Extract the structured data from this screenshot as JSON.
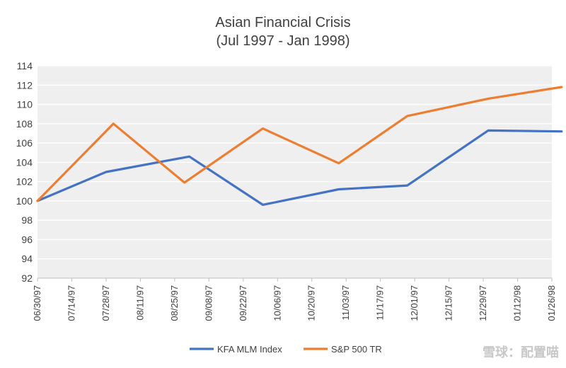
{
  "chart_data": {
    "type": "line",
    "title": "Asian Financial Crisis",
    "subtitle": "(Jul 1997 - Jan 1998)",
    "xlabel": "",
    "ylabel": "",
    "ylim": [
      92,
      114
    ],
    "yticks": [
      92,
      94,
      96,
      98,
      100,
      102,
      104,
      106,
      108,
      110,
      112,
      114
    ],
    "grid": true,
    "legend_position": "bottom",
    "x_dates": [
      "06/30/97",
      "07/14/97",
      "07/28/97",
      "08/11/97",
      "08/25/97",
      "09/08/97",
      "09/22/97",
      "10/06/97",
      "10/20/97",
      "11/03/97",
      "11/17/97",
      "12/01/97",
      "12/15/97",
      "12/29/97",
      "01/12/98",
      "01/26/98"
    ],
    "series": [
      {
        "name": "KFA MLM Index",
        "color": "#4472C4",
        "points": [
          {
            "x": "06/30/97",
            "y": 100.0
          },
          {
            "x": "07/28/97",
            "y": 103.0
          },
          {
            "x": "08/31/97",
            "y": 104.6
          },
          {
            "x": "09/30/97",
            "y": 99.6
          },
          {
            "x": "10/31/97",
            "y": 101.2
          },
          {
            "x": "11/28/97",
            "y": 101.6
          },
          {
            "x": "12/31/97",
            "y": 107.3
          },
          {
            "x": "01/30/98",
            "y": 107.2
          }
        ]
      },
      {
        "name": "S&P 500 TR",
        "color": "#ED7D31",
        "points": [
          {
            "x": "06/30/97",
            "y": 100.0
          },
          {
            "x": "07/31/97",
            "y": 108.0
          },
          {
            "x": "08/29/97",
            "y": 101.9
          },
          {
            "x": "09/30/97",
            "y": 107.5
          },
          {
            "x": "10/31/97",
            "y": 103.9
          },
          {
            "x": "11/28/97",
            "y": 108.8
          },
          {
            "x": "12/31/97",
            "y": 110.6
          },
          {
            "x": "01/30/98",
            "y": 111.8
          }
        ]
      }
    ]
  },
  "watermark": "雪球：配置喵"
}
